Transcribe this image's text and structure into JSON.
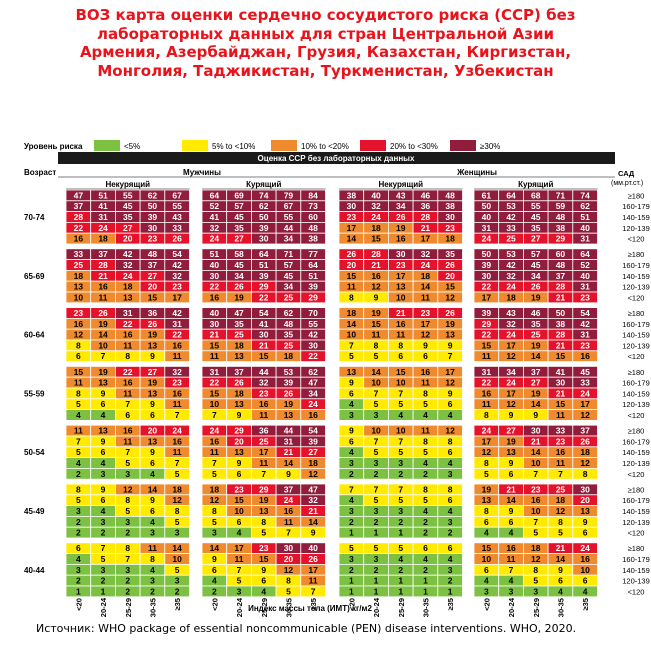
{
  "title_lines": [
    "ВОЗ карта оценки сердечно сосудистого риска (ССР) без",
    "лабораторных данных для стран Центральной Азии",
    "Армения, Азербайджан, Грузия, Казахстан, Киргизстан,",
    "Монголия, Таджикистан, Туркменистан, Узбекистан"
  ],
  "source": "Источник: WHO package of essential noncommunicable (PEN) disease interventions. WHO, 2020.",
  "chart_data": {
    "type": "heatmap",
    "legend": {
      "label": "Уровень риска",
      "items": [
        {
          "label": "<5%",
          "color": "#7dc142"
        },
        {
          "label": "5% to <10%",
          "color": "#ffea00"
        },
        {
          "label": "10% to <20%",
          "color": "#ef8a2e"
        },
        {
          "label": "20% to <30%",
          "color": "#e4132b"
        },
        {
          "label": "≥30%",
          "color": "#8f1d3b"
        }
      ]
    },
    "header": "Оценка ССР без лабораторных данных",
    "age_label": "Возраст",
    "sexes": [
      "Мужчины",
      "Женщины"
    ],
    "smoking": [
      "Некурящий",
      "Курящий"
    ],
    "sbp_label": [
      "САД",
      "(мм.рт.ст.)"
    ],
    "sbp_levels": [
      "≥180",
      "160-179",
      "140-159",
      "120-139",
      "<120"
    ],
    "bmi_levels": [
      "<20",
      "20-24",
      "25-29",
      "30-35",
      "≥35"
    ],
    "xlabel": "Индекс массы тела (ИМТ) кг/м2",
    "age_groups": [
      {
        "age": "70-74",
        "panels": [
          [
            [
              47,
              51,
              55,
              62,
              67
            ],
            [
              37,
              41,
              45,
              50,
              55
            ],
            [
              28,
              31,
              35,
              39,
              43
            ],
            [
              22,
              24,
              27,
              30,
              33
            ],
            [
              16,
              18,
              20,
              23,
              26
            ]
          ],
          [
            [
              64,
              69,
              74,
              79,
              84
            ],
            [
              52,
              57,
              62,
              67,
              73
            ],
            [
              41,
              45,
              50,
              55,
              60
            ],
            [
              32,
              35,
              39,
              44,
              48
            ],
            [
              24,
              27,
              30,
              34,
              38
            ]
          ],
          [
            [
              38,
              40,
              43,
              46,
              48
            ],
            [
              30,
              32,
              34,
              36,
              38
            ],
            [
              23,
              24,
              26,
              28,
              30
            ],
            [
              17,
              18,
              19,
              21,
              23
            ],
            [
              14,
              15,
              16,
              17,
              18
            ]
          ],
          [
            [
              61,
              64,
              68,
              71,
              74
            ],
            [
              50,
              53,
              55,
              59,
              62
            ],
            [
              40,
              42,
              45,
              48,
              51
            ],
            [
              31,
              33,
              35,
              38,
              40
            ],
            [
              24,
              25,
              27,
              29,
              31
            ]
          ]
        ]
      },
      {
        "age": "65-69",
        "panels": [
          [
            [
              33,
              37,
              42,
              48,
              54
            ],
            [
              25,
              28,
              32,
              37,
              42
            ],
            [
              18,
              21,
              24,
              27,
              32
            ],
            [
              13,
              16,
              18,
              20,
              23
            ],
            [
              10,
              11,
              13,
              15,
              17
            ]
          ],
          [
            [
              51,
              58,
              64,
              71,
              77
            ],
            [
              40,
              45,
              51,
              57,
              64
            ],
            [
              30,
              34,
              39,
              45,
              51
            ],
            [
              22,
              26,
              29,
              34,
              39
            ],
            [
              16,
              19,
              22,
              25,
              29
            ]
          ],
          [
            [
              26,
              28,
              30,
              32,
              35
            ],
            [
              20,
              21,
              23,
              24,
              26
            ],
            [
              15,
              16,
              17,
              18,
              20
            ],
            [
              11,
              12,
              13,
              14,
              15
            ],
            [
              8,
              9,
              10,
              11,
              12
            ]
          ],
          [
            [
              50,
              53,
              57,
              60,
              64
            ],
            [
              39,
              42,
              45,
              48,
              52
            ],
            [
              30,
              32,
              34,
              37,
              40
            ],
            [
              22,
              24,
              26,
              28,
              31
            ],
            [
              17,
              18,
              19,
              21,
              23
            ]
          ]
        ]
      },
      {
        "age": "60-64",
        "panels": [
          [
            [
              23,
              26,
              31,
              36,
              42
            ],
            [
              16,
              19,
              22,
              26,
              31
            ],
            [
              12,
              14,
              16,
              19,
              22
            ],
            [
              8,
              10,
              11,
              13,
              16
            ],
            [
              6,
              7,
              8,
              9,
              11
            ]
          ],
          [
            [
              40,
              47,
              54,
              62,
              70
            ],
            [
              30,
              35,
              41,
              48,
              55
            ],
            [
              21,
              25,
              30,
              35,
              42
            ],
            [
              15,
              18,
              21,
              25,
              30
            ],
            [
              11,
              13,
              15,
              18,
              22
            ]
          ],
          [
            [
              18,
              19,
              21,
              23,
              26
            ],
            [
              14,
              15,
              16,
              17,
              19
            ],
            [
              10,
              11,
              11,
              12,
              13
            ],
            [
              7,
              8,
              8,
              9,
              9
            ],
            [
              5,
              5,
              6,
              6,
              7
            ]
          ],
          [
            [
              39,
              43,
              46,
              50,
              54
            ],
            [
              29,
              32,
              35,
              38,
              42
            ],
            [
              22,
              24,
              25,
              28,
              31
            ],
            [
              15,
              17,
              19,
              21,
              23
            ],
            [
              11,
              12,
              14,
              15,
              16
            ]
          ]
        ]
      },
      {
        "age": "55-59",
        "panels": [
          [
            [
              15,
              19,
              22,
              27,
              32
            ],
            [
              11,
              13,
              16,
              19,
              23
            ],
            [
              8,
              9,
              11,
              13,
              16
            ],
            [
              5,
              6,
              7,
              9,
              11
            ],
            [
              4,
              4,
              6,
              6,
              7
            ]
          ],
          [
            [
              31,
              37,
              44,
              53,
              62
            ],
            [
              22,
              26,
              32,
              39,
              47
            ],
            [
              15,
              18,
              23,
              26,
              34
            ],
            [
              10,
              13,
              16,
              19,
              24
            ],
            [
              7,
              9,
              11,
              13,
              16
            ]
          ],
          [
            [
              13,
              14,
              15,
              16,
              17
            ],
            [
              9,
              10,
              10,
              11,
              12
            ],
            [
              6,
              7,
              7,
              8,
              9
            ],
            [
              4,
              5,
              5,
              5,
              6
            ],
            [
              3,
              3,
              4,
              4,
              4
            ]
          ],
          [
            [
              31,
              34,
              37,
              41,
              45
            ],
            [
              22,
              24,
              27,
              30,
              33
            ],
            [
              16,
              17,
              19,
              21,
              24
            ],
            [
              11,
              12,
              14,
              15,
              17
            ],
            [
              8,
              9,
              9,
              11,
              12
            ]
          ]
        ]
      },
      {
        "age": "50-54",
        "panels": [
          [
            [
              11,
              13,
              16,
              20,
              24
            ],
            [
              7,
              9,
              11,
              13,
              16
            ],
            [
              5,
              6,
              7,
              9,
              11
            ],
            [
              4,
              4,
              5,
              6,
              7
            ],
            [
              2,
              3,
              3,
              4,
              5
            ]
          ],
          [
            [
              24,
              29,
              36,
              44,
              54
            ],
            [
              16,
              20,
              25,
              31,
              39
            ],
            [
              11,
              13,
              17,
              21,
              27
            ],
            [
              7,
              9,
              11,
              14,
              18
            ],
            [
              5,
              6,
              7,
              9,
              12
            ]
          ],
          [
            [
              9,
              10,
              10,
              11,
              12
            ],
            [
              6,
              7,
              7,
              8,
              8
            ],
            [
              4,
              5,
              5,
              5,
              6
            ],
            [
              3,
              3,
              3,
              4,
              4
            ],
            [
              2,
              2,
              2,
              2,
              3
            ]
          ],
          [
            [
              24,
              27,
              30,
              33,
              37
            ],
            [
              17,
              19,
              21,
              23,
              26
            ],
            [
              12,
              13,
              14,
              16,
              18
            ],
            [
              8,
              9,
              10,
              11,
              12
            ],
            [
              5,
              6,
              7,
              7,
              8
            ]
          ]
        ]
      },
      {
        "age": "45-49",
        "panels": [
          [
            [
              8,
              9,
              12,
              14,
              18
            ],
            [
              5,
              6,
              8,
              9,
              12
            ],
            [
              3,
              4,
              5,
              6,
              8
            ],
            [
              2,
              3,
              3,
              4,
              5
            ],
            [
              2,
              2,
              2,
              3,
              3
            ]
          ],
          [
            [
              18,
              23,
              29,
              37,
              47
            ],
            [
              12,
              15,
              19,
              24,
              32
            ],
            [
              8,
              10,
              13,
              16,
              21
            ],
            [
              5,
              6,
              8,
              11,
              14
            ],
            [
              3,
              4,
              5,
              7,
              9
            ]
          ],
          [
            [
              7,
              7,
              7,
              8,
              8
            ],
            [
              4,
              5,
              5,
              5,
              6
            ],
            [
              3,
              3,
              3,
              4,
              4
            ],
            [
              2,
              2,
              2,
              2,
              3
            ],
            [
              1,
              1,
              1,
              2,
              2
            ]
          ],
          [
            [
              19,
              21,
              23,
              25,
              30
            ],
            [
              13,
              14,
              16,
              18,
              20
            ],
            [
              8,
              9,
              10,
              12,
              13
            ],
            [
              6,
              6,
              7,
              8,
              9
            ],
            [
              4,
              4,
              5,
              5,
              6
            ]
          ]
        ]
      },
      {
        "age": "40-44",
        "panels": [
          [
            [
              6,
              7,
              8,
              11,
              14
            ],
            [
              4,
              5,
              7,
              8,
              10
            ],
            [
              3,
              3,
              3,
              4,
              5
            ],
            [
              2,
              2,
              2,
              3,
              3
            ],
            [
              1,
              1,
              2,
              2,
              2
            ]
          ],
          [
            [
              14,
              17,
              23,
              30,
              40
            ],
            [
              9,
              11,
              15,
              20,
              26
            ],
            [
              6,
              7,
              9,
              12,
              17
            ],
            [
              4,
              5,
              6,
              8,
              11
            ],
            [
              2,
              3,
              4,
              5,
              7
            ]
          ],
          [
            [
              5,
              5,
              5,
              6,
              6
            ],
            [
              3,
              3,
              4,
              4,
              4
            ],
            [
              2,
              2,
              2,
              2,
              3
            ],
            [
              1,
              1,
              1,
              1,
              2
            ],
            [
              1,
              1,
              1,
              1,
              1
            ]
          ],
          [
            [
              15,
              16,
              18,
              21,
              24
            ],
            [
              10,
              11,
              12,
              14,
              16
            ],
            [
              6,
              7,
              8,
              9,
              10
            ],
            [
              4,
              4,
              5,
              6,
              6
            ],
            [
              3,
              3,
              3,
              4,
              4
            ]
          ]
        ]
      }
    ]
  }
}
